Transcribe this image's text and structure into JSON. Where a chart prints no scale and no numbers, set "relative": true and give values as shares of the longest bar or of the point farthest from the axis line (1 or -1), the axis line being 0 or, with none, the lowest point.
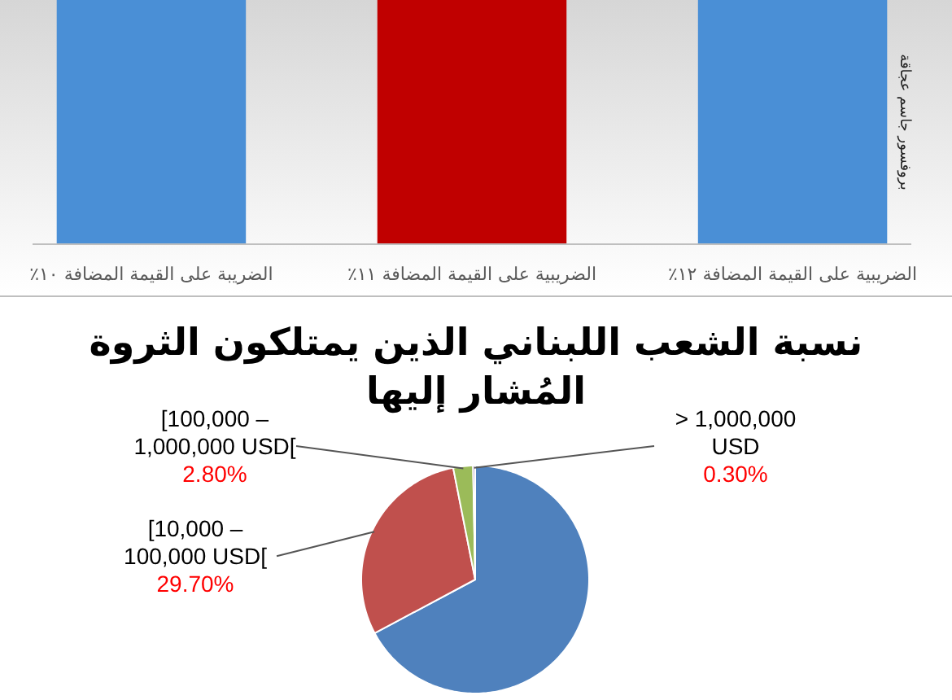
{
  "chart_data": [
    {
      "type": "bar",
      "relative": true,
      "categories": [
        "الضريبة على القيمة المضافة ١٠٪",
        "الضريبية على القيمة المضافة  ١١٪",
        "الضريبية على القيمة المضافة  ١٢٪"
      ],
      "values": [
        1,
        1,
        1
      ],
      "colors": [
        "#4a8fd6",
        "#c00000",
        "#4a8fd6"
      ],
      "annotations": [
        "بروفسور جاسم عجاقة"
      ]
    },
    {
      "type": "pie",
      "title": "نسبة الشعب اللبناني الذين يمتلكون الثروة\nالمُشار إليها",
      "categories": [
        null,
        "[10,000 – 100,000 USD[",
        "[100,000 – 1,000,000 USD[",
        "> 1,000,000 USD"
      ],
      "values": [
        67.2,
        29.7,
        2.8,
        0.3
      ],
      "colors": [
        "#4f81bd",
        "#c0504d",
        "#9bbb59",
        "#8064a2"
      ],
      "value_labels": [
        null,
        "29.70%",
        "2.80%",
        "0.30%"
      ]
    }
  ]
}
